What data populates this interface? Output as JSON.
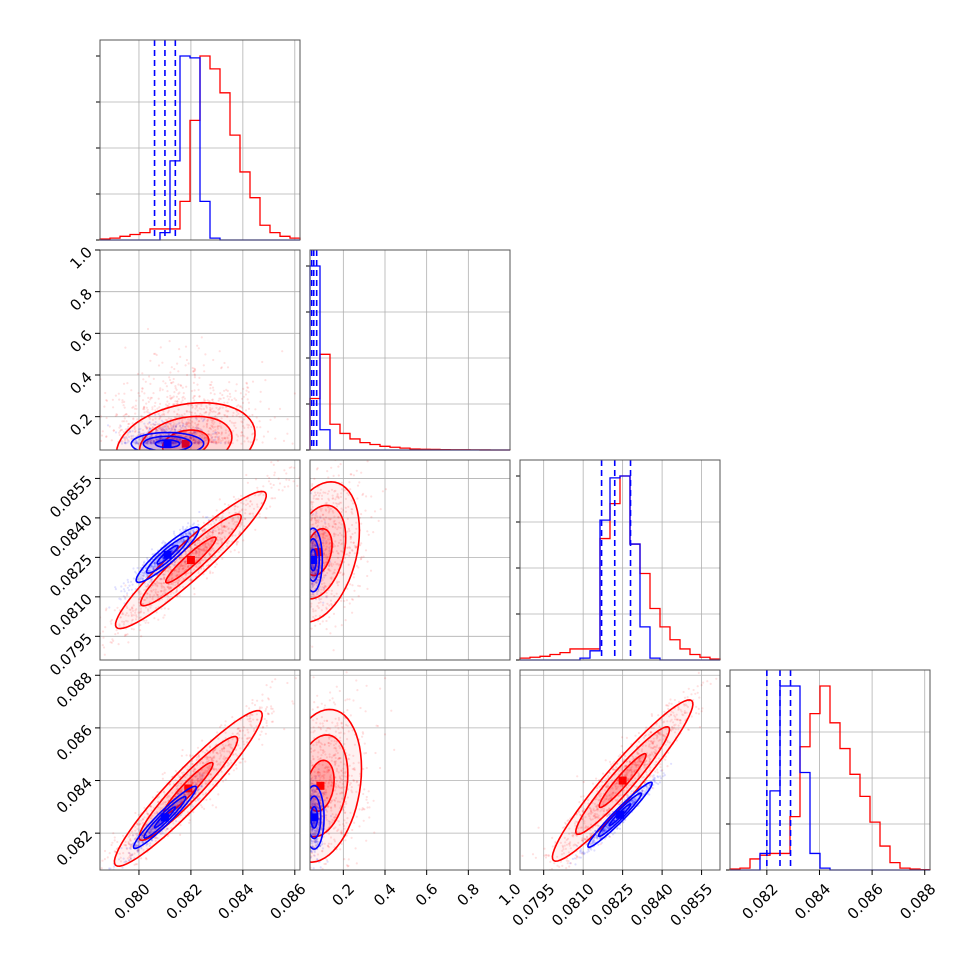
{
  "chart_data": {
    "type": "corner",
    "colors": {
      "blue": "#0000ff",
      "red": "#ff0000",
      "grid": "#b0b0b0",
      "axis": "#555555"
    },
    "series": [
      {
        "color": "blue"
      },
      {
        "color": "red"
      }
    ],
    "parameters": [
      {
        "range": [
          0.0785,
          0.0862
        ],
        "ticks": [
          "0.080",
          "0.082",
          "0.084",
          "0.086"
        ],
        "tick_values": [
          0.08,
          0.082,
          0.084,
          0.086
        ]
      },
      {
        "range": [
          0.04,
          1.0
        ],
        "ticks": [
          "0.2",
          "0.4",
          "0.6",
          "0.8",
          "1.0"
        ],
        "tick_values": [
          0.2,
          0.4,
          0.6,
          0.8,
          1.0
        ]
      },
      {
        "range": [
          0.0786,
          0.0862
        ],
        "ticks": [
          "0.0795",
          "0.0810",
          "0.0825",
          "0.0840",
          "0.0855"
        ],
        "tick_values": [
          0.0795,
          0.081,
          0.0825,
          0.084,
          0.0855
        ]
      },
      {
        "range": [
          0.0806,
          0.0882
        ],
        "ticks": [
          "0.082",
          "0.084",
          "0.086",
          "0.088"
        ],
        "tick_values": [
          0.082,
          0.084,
          0.086,
          0.088
        ]
      }
    ],
    "histograms": [
      {
        "param": 0,
        "blue_bins": [
          0,
          0,
          0,
          0,
          0,
          0,
          0.04,
          0.43,
          1.0,
          0.99,
          0.21,
          0.01,
          0,
          0,
          0,
          0,
          0,
          0,
          0,
          0
        ],
        "red_bins": [
          0.005,
          0.01,
          0.02,
          0.03,
          0.04,
          0.06,
          0.06,
          0.06,
          0.21,
          0.65,
          1.0,
          0.93,
          0.8,
          0.57,
          0.37,
          0.23,
          0.08,
          0.04,
          0.02,
          0.01
        ],
        "blue_quantiles": [
          0.0806,
          0.081,
          0.0814
        ]
      },
      {
        "param": 1,
        "blue_bins": [
          1.0,
          0.11,
          0,
          0,
          0,
          0,
          0,
          0,
          0,
          0,
          0,
          0,
          0,
          0,
          0,
          0,
          0,
          0,
          0,
          0
        ],
        "red_bins": [
          0.28,
          0.52,
          0.14,
          0.09,
          0.06,
          0.04,
          0.03,
          0.02,
          0.015,
          0.01,
          0.005,
          0.004,
          0.003,
          0.002,
          0.001,
          0.001,
          0.0005,
          0.0003,
          0.0002,
          0.0001
        ],
        "blue_quantiles": [
          0.048,
          0.058,
          0.072
        ]
      },
      {
        "param": 2,
        "blue_bins": [
          0,
          0,
          0,
          0,
          0,
          0,
          0.01,
          0.05,
          0.76,
          0.99,
          1.0,
          0.63,
          0.18,
          0.01,
          0,
          0,
          0,
          0,
          0,
          0
        ],
        "red_bins": [
          0.01,
          0.015,
          0.02,
          0.03,
          0.04,
          0.06,
          0.06,
          0.06,
          0.66,
          0.85,
          1.0,
          0.63,
          0.47,
          0.28,
          0.18,
          0.11,
          0.06,
          0.03,
          0.015,
          0.005
        ],
        "blue_quantiles": [
          0.0817,
          0.0822,
          0.0828
        ]
      },
      {
        "param": 3,
        "blue_bins": [
          0,
          0,
          0,
          0.09,
          0.43,
          1.0,
          1.0,
          0.53,
          0.09,
          0.01,
          0,
          0,
          0,
          0,
          0,
          0,
          0,
          0,
          0,
          0
        ],
        "red_bins": [
          0.005,
          0.01,
          0.06,
          0.08,
          0.09,
          0.09,
          0.29,
          0.67,
          0.85,
          1.0,
          0.8,
          0.66,
          0.52,
          0.4,
          0.26,
          0.13,
          0.04,
          0.01,
          0.005,
          0.002
        ],
        "blue_quantiles": [
          0.082,
          0.0825,
          0.0829
        ]
      }
    ],
    "pairs": [
      {
        "x": 0,
        "y": 1,
        "blue_center": [
          0.0811,
          0.07
        ],
        "red_center": [
          0.0818,
          0.07
        ],
        "blue_cov": [
          [
            6e-07,
            0
          ],
          [
            0,
            0.0009
          ]
        ],
        "red_cov": [
          [
            2.2e-06,
            4e-05
          ],
          [
            4e-05,
            0.012
          ]
        ]
      },
      {
        "x": 0,
        "y": 2,
        "blue_center": [
          0.0811,
          0.0826
        ],
        "red_center": [
          0.082,
          0.0824
        ],
        "blue_cov": [
          [
            4.5e-07,
            3.6e-07
          ],
          [
            3.6e-07,
            3.4e-07
          ]
        ],
        "red_cov": [
          [
            2.6e-06,
            2.2e-06
          ],
          [
            2.2e-06,
            2.1e-06
          ]
        ]
      },
      {
        "x": 0,
        "y": 3,
        "blue_center": [
          0.081,
          0.0826
        ],
        "red_center": [
          0.0819,
          0.0837
        ],
        "blue_cov": [
          [
            4.5e-07,
            4.2e-07
          ],
          [
            4.2e-07,
            4.3e-07
          ]
        ],
        "red_cov": [
          [
            2.5e-06,
            2.45e-06
          ],
          [
            2.45e-06,
            2.7e-06
          ]
        ]
      },
      {
        "x": 1,
        "y": 2,
        "blue_center": [
          0.055,
          0.0824
        ],
        "red_center": [
          0.08,
          0.0827
        ],
        "blue_cov": [
          [
            0.0006,
            0
          ],
          [
            0,
            4.5e-07
          ]
        ],
        "red_cov": [
          [
            0.012,
            5e-05
          ],
          [
            5e-05,
            2.2e-06
          ]
        ]
      },
      {
        "x": 1,
        "y": 3,
        "blue_center": [
          0.06,
          0.0826
        ],
        "red_center": [
          0.09,
          0.0838
        ],
        "blue_cov": [
          [
            0.0007,
            0
          ],
          [
            0,
            4.5e-07
          ]
        ],
        "red_cov": [
          [
            0.012,
            4e-05
          ],
          [
            4e-05,
            2.6e-06
          ]
        ]
      },
      {
        "x": 2,
        "y": 3,
        "blue_center": [
          0.0824,
          0.0827
        ],
        "red_center": [
          0.0825,
          0.084
        ],
        "blue_cov": [
          [
            4.6e-07,
            4.5e-07
          ],
          [
            4.5e-07,
            4.7e-07
          ]
        ],
        "red_cov": [
          [
            2.2e-06,
            2.4e-06
          ],
          [
            2.4e-06,
            2.9e-06
          ]
        ]
      }
    ]
  }
}
